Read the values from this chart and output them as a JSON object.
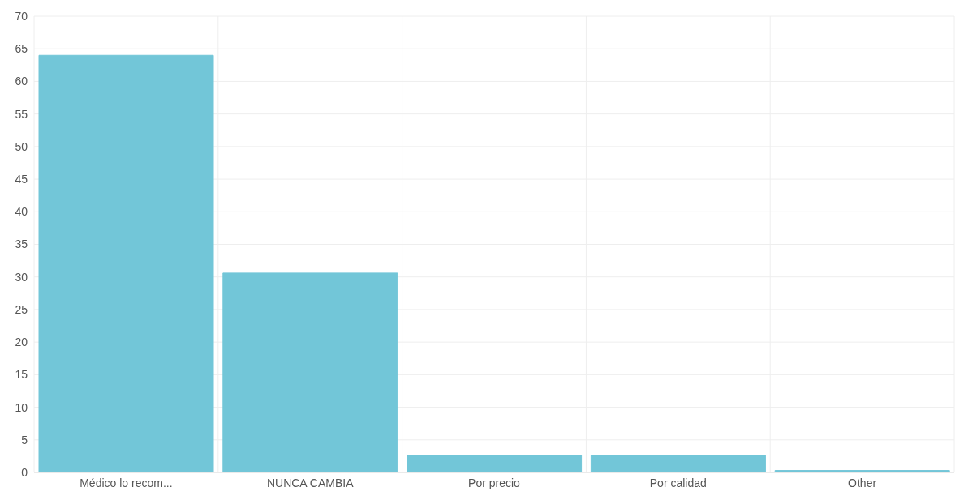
{
  "chart_data": {
    "type": "bar",
    "categories": [
      "Médico lo recom...",
      "NUNCA CAMBIA",
      "Por precio",
      "Por calidad",
      "Other"
    ],
    "values": [
      64,
      30.6,
      2.6,
      2.6,
      0.3
    ],
    "color": "#72c6d8",
    "ylim": [
      0,
      70
    ],
    "yticks": [
      0,
      5,
      10,
      15,
      20,
      25,
      30,
      35,
      40,
      45,
      50,
      55,
      60,
      65,
      70
    ],
    "grid": true
  }
}
